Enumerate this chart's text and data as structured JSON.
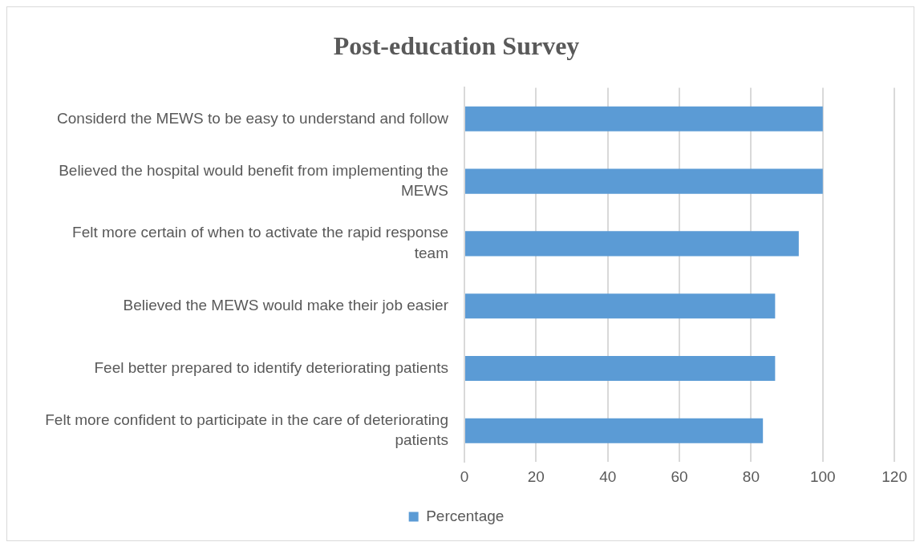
{
  "chart_data": {
    "type": "bar",
    "orientation": "horizontal",
    "title": "Post-education Survey",
    "categories": [
      "Considerd the MEWS to be easy to understand and follow",
      "Believed the hospital would benefit from implementing the MEWS",
      "Felt more certain of when to activate the rapid response team",
      "Believed the MEWS would make their job easier",
      "Feel better prepared to identify deteriorating patients",
      "Felt more confident to participate in the care of deteriorating patients"
    ],
    "series": [
      {
        "name": "Percentage",
        "color": "#5b9bd5",
        "values": [
          100,
          100,
          93.3,
          86.7,
          86.7,
          83.3
        ]
      }
    ],
    "xlim": [
      0,
      120
    ],
    "xticks": [
      0,
      20,
      40,
      60,
      80,
      100,
      120
    ],
    "grid": "x",
    "legend": "bottom"
  }
}
